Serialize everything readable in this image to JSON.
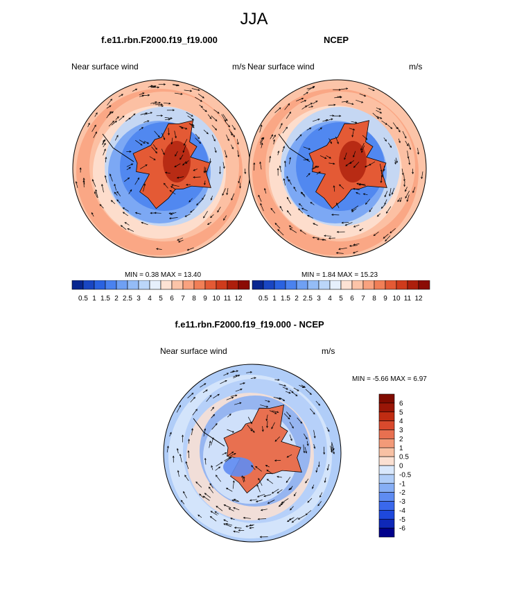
{
  "main_title": "JJA",
  "colors": {
    "abs_scale": [
      "#08268f",
      "#1946c2",
      "#2a62e0",
      "#4a82ef",
      "#6fa0f3",
      "#94bcf6",
      "#bbd6f9",
      "#e6f0fc",
      "#fde2d4",
      "#fcc4a8",
      "#f9a27f",
      "#f17f57",
      "#e45a35",
      "#cf3b1c",
      "#ad1f0c",
      "#8b0c05"
    ],
    "diff_scale": [
      "#00008b",
      "#0f28b8",
      "#1e48dc",
      "#3a68ec",
      "#5f8cf2",
      "#86aef5",
      "#b0cdf8",
      "#d9e8fc",
      "#fbe0d2",
      "#f8c1a4",
      "#f39a78",
      "#e87050",
      "#d94a2d",
      "#c02c12",
      "#9a1607",
      "#800b00"
    ]
  },
  "chart_data": [
    {
      "type": "heatmap",
      "projection": "south-polar-stereographic",
      "title": "f.e11.rbn.F2000.f19_f19.000",
      "left_label": "Near surface wind",
      "right_label": "m/s",
      "min_max_text": "MIN =   0.38 MAX =  13.40",
      "min": 0.38,
      "max": 13.4,
      "colorbar": {
        "orientation": "horizontal",
        "levels": [
          0.5,
          1,
          1.5,
          2,
          2.5,
          3,
          4,
          5,
          6,
          7,
          8,
          9,
          10,
          11,
          12
        ],
        "tick_labels": [
          "0.5",
          "1",
          "1.5",
          "2",
          "2.5",
          "3",
          "4",
          "5",
          "6",
          "7",
          "8",
          "9",
          "10",
          "11",
          "12"
        ]
      }
    },
    {
      "type": "heatmap",
      "projection": "south-polar-stereographic",
      "title": "NCEP",
      "left_label": "Near surface wind",
      "right_label": "m/s",
      "min_max_text": "MIN =   1.84 MAX =  15.23",
      "min": 1.84,
      "max": 15.23,
      "colorbar": {
        "orientation": "horizontal",
        "levels": [
          0.5,
          1,
          1.5,
          2,
          2.5,
          3,
          4,
          5,
          6,
          7,
          8,
          9,
          10,
          11,
          12
        ],
        "tick_labels": [
          "0.5",
          "1",
          "1.5",
          "2",
          "2.5",
          "3",
          "4",
          "5",
          "6",
          "7",
          "8",
          "9",
          "10",
          "11",
          "12"
        ]
      }
    },
    {
      "type": "heatmap",
      "projection": "south-polar-stereographic",
      "title": "f.e11.rbn.F2000.f19_f19.000 - NCEP",
      "left_label": "Near surface wind",
      "right_label": "m/s",
      "min_max_text": "MIN =  -5.66 MAX =   6.97",
      "min": -5.66,
      "max": 6.97,
      "colorbar": {
        "orientation": "vertical",
        "levels": [
          -6,
          -5,
          -4,
          -3,
          -2,
          -1,
          -0.5,
          0,
          0.5,
          1,
          2,
          3,
          4,
          5,
          6
        ],
        "tick_labels": [
          "6",
          "5",
          "4",
          "3",
          "2",
          "1",
          "0.5",
          "0",
          "-0.5",
          "-1",
          "-2",
          "-3",
          "-4",
          "-5",
          "-6"
        ]
      }
    }
  ]
}
